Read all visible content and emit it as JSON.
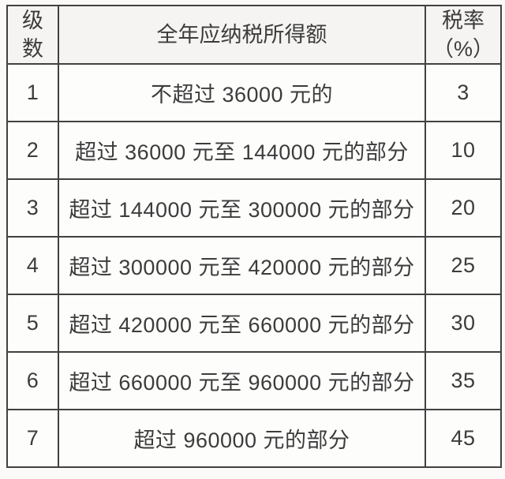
{
  "colors": {
    "border": "#414141",
    "header_background": "#f5f4f2",
    "body_background": "#fdfdfc",
    "text": "#3c3c3c",
    "page_background": "#fbfaf8"
  },
  "table": {
    "columns": [
      {
        "id": "level",
        "label": "级数",
        "lines": [
          "级",
          "数"
        ]
      },
      {
        "id": "income",
        "label": "全年应纳税所得额",
        "lines": [
          "全年应纳税所得额"
        ]
      },
      {
        "id": "rate",
        "label": "税率（%）",
        "lines": [
          "税率",
          "（%）"
        ]
      }
    ],
    "rows": [
      {
        "level": "1",
        "income": "不超过 36000 元的",
        "rate": "3"
      },
      {
        "level": "2",
        "income": "超过 36000 元至 144000 元的部分",
        "rate": "10"
      },
      {
        "level": "3",
        "income": "超过 144000 元至 300000 元的部分",
        "rate": "20"
      },
      {
        "level": "4",
        "income": "超过 300000 元至 420000 元的部分",
        "rate": "25"
      },
      {
        "level": "5",
        "income": "超过 420000 元至 660000 元的部分",
        "rate": "30"
      },
      {
        "level": "6",
        "income": "超过 660000 元至 960000 元的部分",
        "rate": "35"
      },
      {
        "level": "7",
        "income": "超过 960000 元的部分",
        "rate": "45"
      }
    ]
  }
}
